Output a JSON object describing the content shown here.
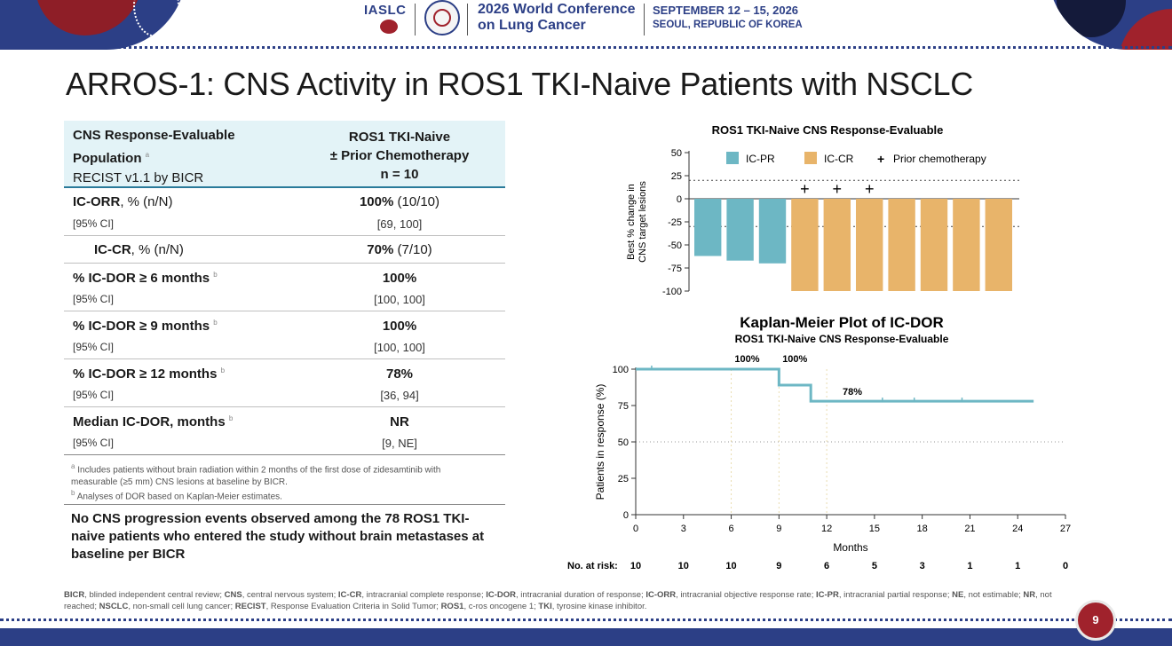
{
  "header": {
    "org": "IASLC",
    "conference_line1": "2026 World Conference",
    "conference_line2": "on Lung Cancer",
    "date_line1": "SEPTEMBER 12 – 15, 2026",
    "date_line2": "SEOUL, REPUBLIC OF KOREA"
  },
  "slide_title": "ARROS-1: CNS Activity in ROS1 TKI-Naive Patients with NSCLC",
  "table": {
    "head_left_line1": "CNS Response-Evaluable",
    "head_left_line2": "Population",
    "head_left_sup": "a",
    "head_left_line3": "RECIST v1.1 by BICR",
    "head_right_line1": "ROS1 TKI-Naive",
    "head_right_line2": "± Prior Chemotherapy",
    "head_right_line3": "n = 10",
    "rows": [
      {
        "label_bold": "IC-ORR",
        "label_rest": ", % (n/N)",
        "sup": "",
        "ci_label": "[95% CI]",
        "value_bold": "100%",
        "value_rest": " (10/10)",
        "ci_value": "[69, 100]"
      },
      {
        "label_bold": "IC-CR",
        "label_rest": ", % (n/N)",
        "sup": "",
        "ci_label": "",
        "value_bold": "70%",
        "value_rest": " (7/10)",
        "ci_value": ""
      },
      {
        "label_bold": "% IC-DOR ≥ 6 months",
        "label_rest": "",
        "sup": "b",
        "ci_label": "[95% CI]",
        "value_bold": "100%",
        "value_rest": "",
        "ci_value": "[100, 100]"
      },
      {
        "label_bold": "% IC-DOR ≥ 9 months",
        "label_rest": "",
        "sup": "b",
        "ci_label": "[95% CI]",
        "value_bold": "100%",
        "value_rest": "",
        "ci_value": "[100, 100]"
      },
      {
        "label_bold": "% IC-DOR ≥ 12 months",
        "label_rest": "",
        "sup": "b",
        "ci_label": "[95% CI]",
        "value_bold": "78%",
        "value_rest": "",
        "ci_value": "[36, 94]"
      },
      {
        "label_bold": "Median IC-DOR, months",
        "label_rest": "",
        "sup": "b",
        "ci_label": "[95% CI]",
        "value_bold": "NR",
        "value_rest": "",
        "ci_value": "[9, NE]"
      }
    ],
    "footnote_a_sup": "a",
    "footnote_a": "Includes patients without brain radiation within 2 months of the first dose of zidesamtinib with measurable (≥5 mm) CNS lesions at baseline by BICR.",
    "footnote_b_sup": "b",
    "footnote_b": "Analyses of DOR based on Kaplan-Meier estimates."
  },
  "conclusion": "No CNS progression events observed among the 78 ROS1 TKI-naive patients who entered the study without brain metastases at baseline per BICR",
  "abbreviations": [
    {
      "term": "BICR",
      "def": ", blinded independent central review; "
    },
    {
      "term": "CNS",
      "def": ", central nervous system; "
    },
    {
      "term": "IC-CR",
      "def": ", intracranial complete response; "
    },
    {
      "term": "IC-DOR",
      "def": ", intracranial duration of response; "
    },
    {
      "term": "IC-ORR",
      "def": ", intracranial objective response rate; "
    },
    {
      "term": "IC-PR",
      "def": ", intracranial partial response; "
    },
    {
      "term": "NE",
      "def": ", not estimable; "
    },
    {
      "term": "NR",
      "def": ", not reached; "
    },
    {
      "term": "NSCLC",
      "def": ", non-small cell lung cancer; "
    },
    {
      "term": "RECIST",
      "def": ", Response Evaluation Criteria in Solid Tumor; "
    },
    {
      "term": "ROS1",
      "def": ", c-ros oncogene 1; "
    },
    {
      "term": "TKI",
      "def": ", tyrosine kinase inhibitor."
    }
  ],
  "page_number": "9",
  "colors": {
    "ic_pr": "#6db7c4",
    "ic_cr": "#e8b46a",
    "km_line": "#6db7c4",
    "brand": "#2c3f86",
    "accent": "#a0222c"
  },
  "chart_data": [
    {
      "type": "bar",
      "title": "ROS1 TKI-Naive CNS Response-Evaluable",
      "ylabel_line1": "Best % change in",
      "ylabel_line2": "CNS target lesions",
      "ylim": [
        -100,
        50
      ],
      "yticks": [
        50,
        25,
        0,
        -25,
        -50,
        -75,
        -100
      ],
      "reference_lines": [
        20,
        -30
      ],
      "legend": {
        "placement": "top",
        "ic_pr": "IC-PR",
        "ic_cr": "IC-CR",
        "prior_chemo": "Prior chemotherapy",
        "prior_chemo_marker": "+"
      },
      "bars": [
        {
          "value": -62,
          "response": "IC-PR",
          "prior_chemo": false
        },
        {
          "value": -67,
          "response": "IC-PR",
          "prior_chemo": false
        },
        {
          "value": -70,
          "response": "IC-PR",
          "prior_chemo": false
        },
        {
          "value": -100,
          "response": "IC-CR",
          "prior_chemo": true
        },
        {
          "value": -100,
          "response": "IC-CR",
          "prior_chemo": true
        },
        {
          "value": -100,
          "response": "IC-CR",
          "prior_chemo": true
        },
        {
          "value": -100,
          "response": "IC-CR",
          "prior_chemo": false
        },
        {
          "value": -100,
          "response": "IC-CR",
          "prior_chemo": false
        },
        {
          "value": -100,
          "response": "IC-CR",
          "prior_chemo": false
        },
        {
          "value": -100,
          "response": "IC-CR",
          "prior_chemo": false
        }
      ]
    },
    {
      "type": "line",
      "title": "Kaplan-Meier Plot of IC-DOR",
      "subtitle": "ROS1 TKI-Naive CNS Response-Evaluable",
      "xlabel": "Months",
      "ylabel": "Patients in response (%)",
      "xlim": [
        0,
        27
      ],
      "ylim": [
        0,
        100
      ],
      "xticks": [
        0,
        3,
        6,
        9,
        12,
        15,
        18,
        21,
        24,
        27
      ],
      "yticks": [
        0,
        25,
        50,
        75,
        100
      ],
      "reference_y": 50,
      "reference_x": [
        6,
        9,
        12
      ],
      "steps": [
        {
          "x": 0,
          "y": 100
        },
        {
          "x": 9,
          "y": 100
        },
        {
          "x": 9,
          "y": 89
        },
        {
          "x": 11,
          "y": 89
        },
        {
          "x": 11,
          "y": 78
        },
        {
          "x": 25,
          "y": 78
        }
      ],
      "censor_ticks": [
        {
          "x": 1,
          "y": 100
        },
        {
          "x": 15.5,
          "y": 78
        },
        {
          "x": 17.5,
          "y": 78
        },
        {
          "x": 20.5,
          "y": 78
        }
      ],
      "annotations": [
        {
          "text": "100%",
          "x": 7,
          "y": 100
        },
        {
          "text": "100%",
          "x": 10,
          "y": 100
        },
        {
          "text": "78%",
          "x": 13,
          "y": 78
        }
      ],
      "at_risk_label": "No. at risk:",
      "at_risk": [
        10,
        10,
        10,
        9,
        6,
        5,
        3,
        1,
        1,
        0
      ]
    }
  ]
}
